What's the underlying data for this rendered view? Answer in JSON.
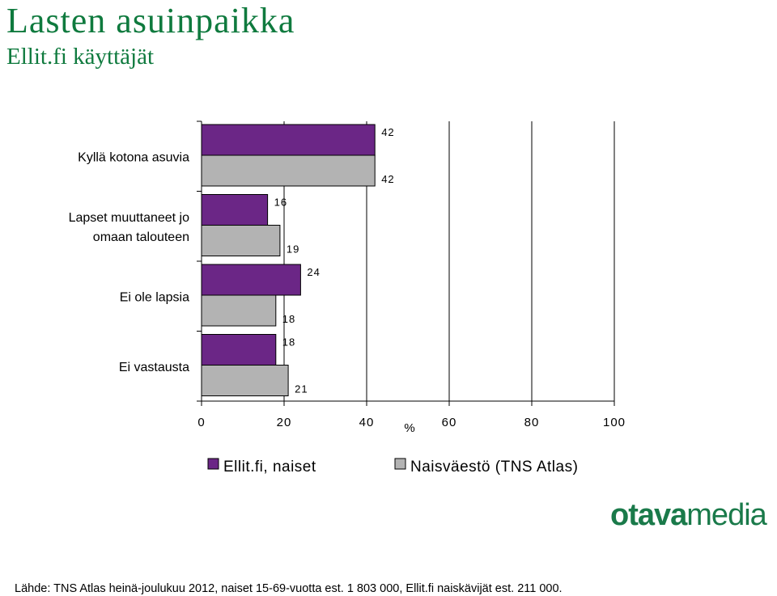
{
  "header": {
    "title": "Lasten asuinpaikka",
    "subtitle": "Ellit.fi käyttäjät"
  },
  "chart_data": {
    "type": "bar",
    "orientation": "horizontal",
    "title": "Lasten asuinpaikka",
    "subtitle": "Ellit.fi käyttäjät",
    "categories": [
      [
        "Kyllä kotona asuvia"
      ],
      [
        "Lapset muuttaneet jo",
        "omaan talouteen"
      ],
      [
        "Ei ole lapsia"
      ],
      [
        "Ei vastausta"
      ]
    ],
    "series": [
      {
        "name": "Ellit.fi, naiset",
        "color": "#6b2686",
        "values": [
          42,
          16,
          24,
          18
        ]
      },
      {
        "name": "Naisväestö (TNS Atlas)",
        "color": "#b3b3b3",
        "values": [
          42,
          19,
          18,
          21
        ]
      }
    ],
    "xlabel": "%",
    "xlim": [
      0,
      100
    ],
    "xticks": [
      0,
      20,
      40,
      60,
      80,
      100
    ],
    "grid": "vertical",
    "legend_position": "bottom",
    "data_labels": true
  },
  "logo": {
    "bold": "otava",
    "regular": "media"
  },
  "footer": {
    "source": "Lähde: TNS Atlas heinä-joulukuu 2012, naiset 15-69-vuotta est. 1 803 000, Ellit.fi naiskävijät est. 211 000."
  }
}
